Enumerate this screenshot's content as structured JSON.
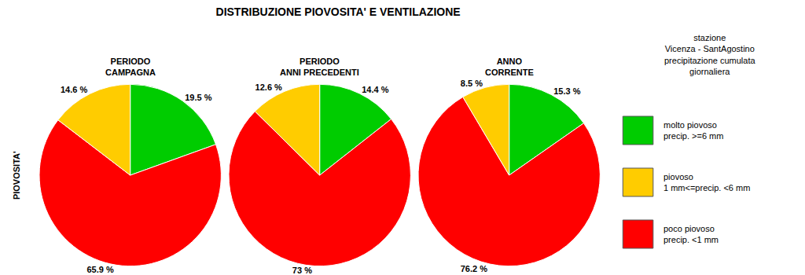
{
  "chart_data": {
    "type": "pie",
    "title": "DISTRIBUZIONE PIOVOSITA' E VENTILAZIONE",
    "ylabel": "PIOVOSITA'",
    "series": [
      {
        "name": "PERIODO\nCAMPAGNA",
        "values": [
          19.5,
          65.9,
          14.6
        ],
        "value_labels": [
          "19.5 %",
          "65.9 %",
          "14.6 %"
        ],
        "colors": [
          "#00cc00",
          "#ff0000",
          "#ffcc00"
        ]
      },
      {
        "name": "PERIODO\nANNI PRECEDENTI",
        "values": [
          14.4,
          73.0,
          12.6
        ],
        "value_labels": [
          "14.4 %",
          "73 %",
          "12.6 %"
        ],
        "colors": [
          "#00cc00",
          "#ff0000",
          "#ffcc00"
        ]
      },
      {
        "name": "ANNO\nCORRENTE",
        "values": [
          15.3,
          76.2,
          8.5
        ],
        "value_labels": [
          "15.3 %",
          "76.2 %",
          "8.5 %"
        ],
        "colors": [
          "#00cc00",
          "#ff0000",
          "#ffcc00"
        ]
      }
    ],
    "legend_title": [
      "stazione",
      "Vicenza - SantAgostino",
      "precipitazione cumulata",
      "giornaliera"
    ],
    "legend_entries": [
      {
        "color": "#00cc00",
        "name": "molto piovoso",
        "description": "precip. >=6 mm"
      },
      {
        "color": "#ffcc00",
        "name": "piovoso",
        "description": "1 mm<=precip. <6 mm"
      },
      {
        "color": "#ff0000",
        "name": "poco piovoso",
        "description": "precip. <1 mm"
      }
    ],
    "data_labels": true
  }
}
